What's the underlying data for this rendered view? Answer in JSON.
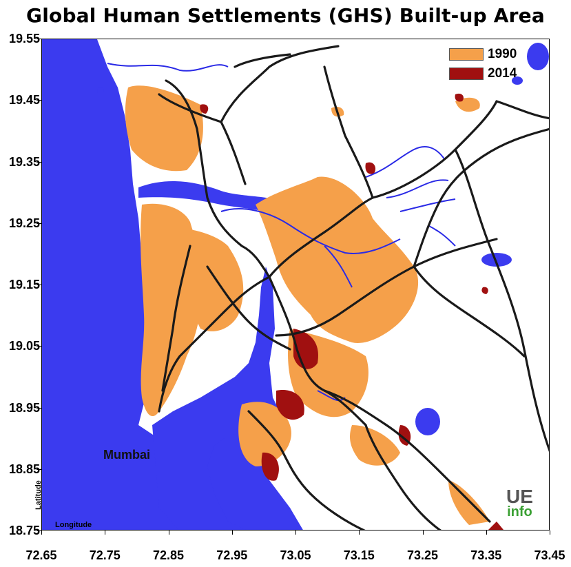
{
  "title": "Global Human Settlements (GHS) Built-up Area",
  "legend": [
    {
      "label": "1990",
      "color": "#f5a04a"
    },
    {
      "label": "2014",
      "color": "#a01010"
    }
  ],
  "y_ticks": [
    "19.55",
    "19.45",
    "19.35",
    "19.25",
    "19.15",
    "19.05",
    "18.95",
    "18.85",
    "18.75"
  ],
  "x_ticks": [
    "72.65",
    "72.75",
    "72.85",
    "72.95",
    "73.05",
    "73.15",
    "73.25",
    "73.35",
    "73.45"
  ],
  "axis_labels": {
    "y": "Latitude",
    "x": "Longitude"
  },
  "place_label": "Mumbai",
  "logo": {
    "line1": "UE",
    "line2": "info"
  },
  "colors": {
    "water": "#3b3bef",
    "built_1990": "#f5a04a",
    "built_2014": "#a01010",
    "roads": "#1a1a1a",
    "rivers": "#2a2ae6"
  }
}
